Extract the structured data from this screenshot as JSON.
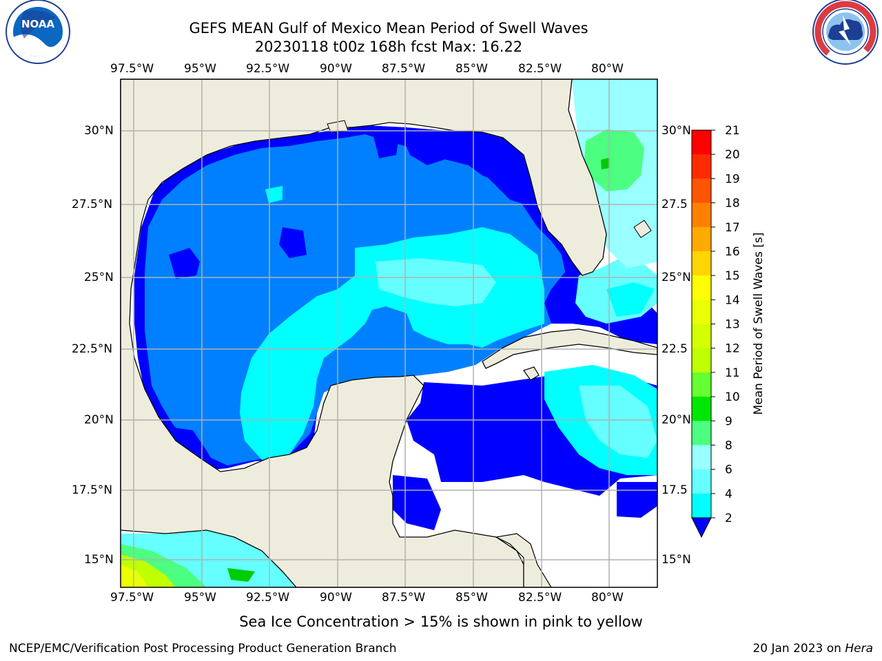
{
  "header": {
    "title_line1": "GEFS MEAN Gulf of Mexico Mean Period of Swell Waves",
    "title_line2": "20230118 t00z 168h fcst   Max: 16.22"
  },
  "logos": {
    "left": "NOAA",
    "left_ring": "NATIONAL OCEANIC AND ATMOSPHERIC ADMINISTRATION · U.S. DEPARTMENT OF COMMERCE",
    "right_ring": "NATIONAL WEATHER SERVICE"
  },
  "map": {
    "lon_labels": [
      "97.5°W",
      "95°W",
      "92.5°W",
      "90°W",
      "87.5°W",
      "85°W",
      "82.5°W",
      "80°W"
    ],
    "lat_labels_left": [
      "30°N",
      "27.5°N",
      "25°N",
      "22.5°N",
      "20°N",
      "17.5°N",
      "15°N"
    ],
    "lat_labels_right": [
      "30°N",
      "27.5",
      "25°N",
      "22.5",
      "20°N",
      "17.5",
      "15°N"
    ],
    "land_color": "#eeeddd",
    "grid_color": "#b0b0b0"
  },
  "colorbar": {
    "label": "Mean Period of Swell Waves [s]",
    "ticks": [
      "21",
      "20",
      "19",
      "18",
      "17",
      "16",
      "15",
      "14",
      "13",
      "12",
      "11",
      "10",
      "9",
      "8",
      "6",
      "4",
      "2"
    ],
    "colors": [
      "#ff0000",
      "#ff2b00",
      "#ff5500",
      "#ff8000",
      "#ffaa00",
      "#ffd500",
      "#ffff00",
      "#eaff00",
      "#d4ff00",
      "#bfff00",
      "#66ff33",
      "#00e600",
      "#00cc00",
      "#4dff80",
      "#99ffff",
      "#66ffff",
      "#00ffff",
      "#0080ff",
      "#0000ff"
    ]
  },
  "subtitle": "Sea Ice Concentration > 15% is shown in pink to yellow",
  "footer": {
    "left": "NCEP/EMC/Verification Post Processing Product Generation Branch",
    "right_date": "20 Jan 2023 on ",
    "right_host": "Hera"
  }
}
